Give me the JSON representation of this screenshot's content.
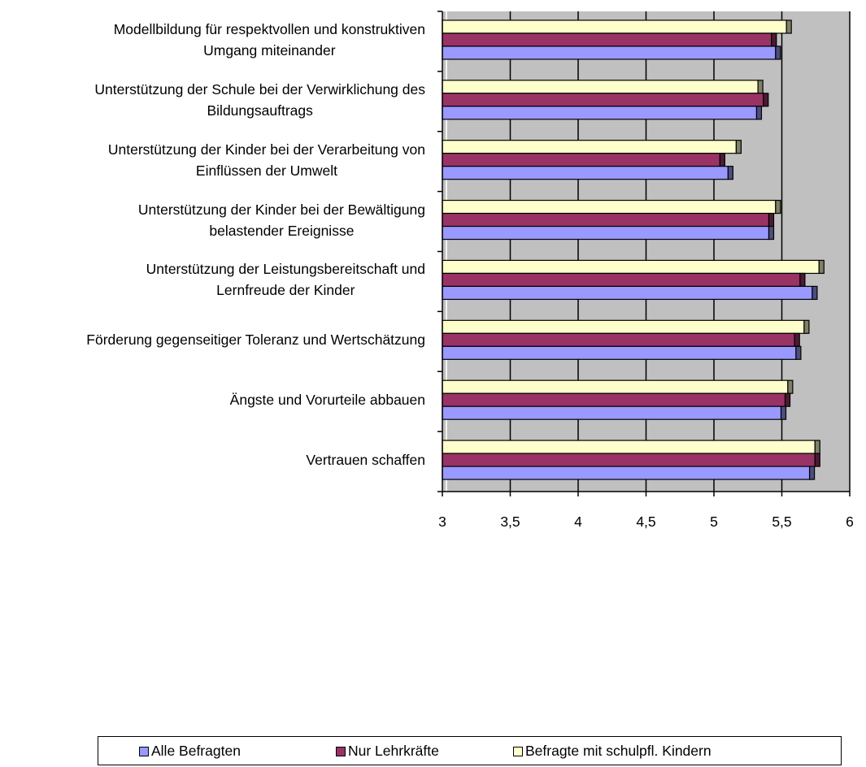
{
  "chart_data": {
    "type": "bar",
    "orientation": "horizontal",
    "title": "",
    "xlabel": "",
    "ylabel": "",
    "xlim": [
      3,
      6
    ],
    "x_ticks": [
      "3",
      "3,5",
      "4",
      "4,5",
      "5",
      "5,5",
      "6"
    ],
    "x_tick_values": [
      3,
      3.5,
      4,
      4.5,
      5,
      5.5,
      6
    ],
    "grid": true,
    "legend_position": "bottom",
    "categories": [
      [
        "Modellbildung für respektvollen und konstruktiven",
        "Umgang miteinander"
      ],
      [
        "Unterstützung der Schule bei der Verwirklichung des",
        "Bildungsauftrags"
      ],
      [
        "Unterstützung der Kinder bei der Verarbeitung von",
        "Einflüssen der Umwelt"
      ],
      [
        "Unterstützung der Kinder bei der Bewältigung",
        "belastender Ereignisse"
      ],
      [
        "Unterstützung der Leistungsbereitschaft und",
        "Lernfreude der Kinder"
      ],
      [
        "Förderung gegenseitiger Toleranz und Wertschätzung"
      ],
      [
        "Ängste und Vorurteile abbauen"
      ],
      [
        "Vertrauen schaffen"
      ]
    ],
    "series": [
      {
        "name": "Alle Befragten",
        "color": "#9999ff",
        "values": [
          5.49,
          5.35,
          5.14,
          5.44,
          5.76,
          5.64,
          5.53,
          5.74
        ]
      },
      {
        "name": "Nur Lehrkräfte",
        "color": "#993366",
        "values": [
          5.46,
          5.4,
          5.08,
          5.44,
          5.67,
          5.63,
          5.56,
          5.78
        ]
      },
      {
        "name": "Befragte mit schulpfl. Kindern",
        "color": "#ffffcc",
        "values": [
          5.57,
          5.36,
          5.2,
          5.49,
          5.81,
          5.7,
          5.58,
          5.78
        ]
      }
    ]
  }
}
